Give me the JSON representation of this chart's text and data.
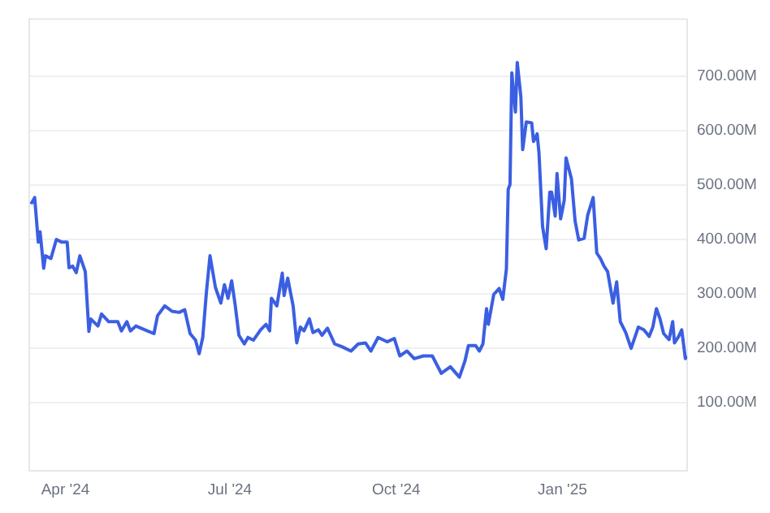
{
  "chart_data": {
    "type": "line",
    "x": [
      "2024-03-13",
      "2024-03-15",
      "2024-03-17",
      "2024-03-18",
      "2024-03-20",
      "2024-03-21",
      "2024-03-24",
      "2024-03-27",
      "2024-03-30",
      "2024-04-02",
      "2024-04-03",
      "2024-04-05",
      "2024-04-07",
      "2024-04-09",
      "2024-04-12",
      "2024-04-14",
      "2024-04-15",
      "2024-04-19",
      "2024-04-21",
      "2024-04-25",
      "2024-04-30",
      "2024-05-02",
      "2024-05-05",
      "2024-05-07",
      "2024-05-10",
      "2024-05-15",
      "2024-05-20",
      "2024-05-22",
      "2024-05-26",
      "2024-05-30",
      "2024-06-03",
      "2024-06-06",
      "2024-06-09",
      "2024-06-12",
      "2024-06-14",
      "2024-06-16",
      "2024-06-18",
      "2024-06-20",
      "2024-06-23",
      "2024-06-26",
      "2024-06-28",
      "2024-06-30",
      "2024-07-02",
      "2024-07-04",
      "2024-07-06",
      "2024-07-09",
      "2024-07-11",
      "2024-07-14",
      "2024-07-18",
      "2024-07-21",
      "2024-07-23",
      "2024-07-24",
      "2024-07-27",
      "2024-07-30",
      "2024-07-31",
      "2024-08-02",
      "2024-08-05",
      "2024-08-07",
      "2024-08-09",
      "2024-08-11",
      "2024-08-14",
      "2024-08-16",
      "2024-08-19",
      "2024-08-21",
      "2024-08-24",
      "2024-08-28",
      "2024-09-01",
      "2024-09-06",
      "2024-09-10",
      "2024-09-14",
      "2024-09-17",
      "2024-09-21",
      "2024-09-26",
      "2024-09-30",
      "2024-10-03",
      "2024-10-07",
      "2024-10-11",
      "2024-10-16",
      "2024-10-21",
      "2024-10-26",
      "2024-10-31",
      "2024-11-05",
      "2024-11-08",
      "2024-11-10",
      "2024-11-14",
      "2024-11-16",
      "2024-11-18",
      "2024-11-20",
      "2024-11-21",
      "2024-11-24",
      "2024-11-27",
      "2024-11-29",
      "2024-12-01",
      "2024-12-02",
      "2024-12-03",
      "2024-12-04",
      "2024-12-06",
      "2024-12-07",
      "2024-12-09",
      "2024-12-10",
      "2024-12-12",
      "2024-12-15",
      "2024-12-16",
      "2024-12-18",
      "2024-12-19",
      "2024-12-21",
      "2024-12-23",
      "2024-12-25",
      "2024-12-26",
      "2024-12-28",
      "2024-12-29",
      "2024-12-31",
      "2025-01-02",
      "2025-01-03",
      "2025-01-06",
      "2025-01-08",
      "2025-01-10",
      "2025-01-13",
      "2025-01-15",
      "2025-01-18",
      "2025-01-20",
      "2025-01-22",
      "2025-01-24",
      "2025-01-26",
      "2025-01-29",
      "2025-01-31",
      "2025-02-02",
      "2025-02-05",
      "2025-02-08",
      "2025-02-12",
      "2025-02-15",
      "2025-02-18",
      "2025-02-20",
      "2025-02-22",
      "2025-02-24",
      "2025-02-26",
      "2025-03-01",
      "2025-03-03",
      "2025-03-04",
      "2025-03-06",
      "2025-03-08",
      "2025-03-10",
      "2025-03-11"
    ],
    "series": [
      {
        "color": "#3b5fe2",
        "values": [
          465,
          477,
          395,
          414,
          347,
          370,
          365,
          400,
          395,
          395,
          348,
          351,
          339,
          370,
          341,
          231,
          254,
          241,
          263,
          249,
          249,
          232,
          249,
          232,
          241,
          234,
          227,
          260,
          278,
          268,
          266,
          271,
          227,
          215,
          190,
          220,
          302,
          370,
          312,
          283,
          317,
          292,
          324,
          278,
          224,
          208,
          220,
          215,
          234,
          244,
          232,
          292,
          278,
          338,
          297,
          329,
          278,
          210,
          239,
          232,
          254,
          229,
          234,
          224,
          237,
          208,
          203,
          195,
          208,
          210,
          195,
          220,
          212,
          218,
          186,
          195,
          181,
          186,
          186,
          154,
          166,
          147,
          176,
          205,
          205,
          195,
          208,
          273,
          244,
          299,
          310,
          290,
          346,
          492,
          501,
          706,
          634,
          725,
          662,
          565,
          616,
          614,
          580,
          594,
          560,
          424,
          383,
          487,
          487,
          443,
          521,
          438,
          472,
          550,
          511,
          434,
          399,
          402,
          445,
          477,
          375,
          365,
          351,
          341,
          283,
          322,
          249,
          229,
          200,
          239,
          234,
          222,
          239,
          273,
          254,
          227,
          216,
          249,
          210,
          220,
          234,
          181,
          186
        ]
      }
    ],
    "xlim": [
      "2024-03-12",
      "2025-03-11"
    ],
    "xticks": [
      {
        "value": "2024-04-01",
        "label": "Apr '24"
      },
      {
        "value": "2024-07-01",
        "label": "Jul '24"
      },
      {
        "value": "2024-10-01",
        "label": "Oct '24"
      },
      {
        "value": "2025-01-01",
        "label": "Jan '25"
      }
    ],
    "ylim": [
      -25,
      805
    ],
    "yticks": [
      {
        "value": 100,
        "label": "100.00M"
      },
      {
        "value": 200,
        "label": "200.00M"
      },
      {
        "value": 300,
        "label": "300.00M"
      },
      {
        "value": 400,
        "label": "400.00M"
      },
      {
        "value": 500,
        "label": "500.00M"
      },
      {
        "value": 600,
        "label": "600.00M"
      },
      {
        "value": 700,
        "label": "700.00M"
      }
    ],
    "grid": "y",
    "legend": false,
    "marker": "none",
    "line_style": "solid"
  }
}
